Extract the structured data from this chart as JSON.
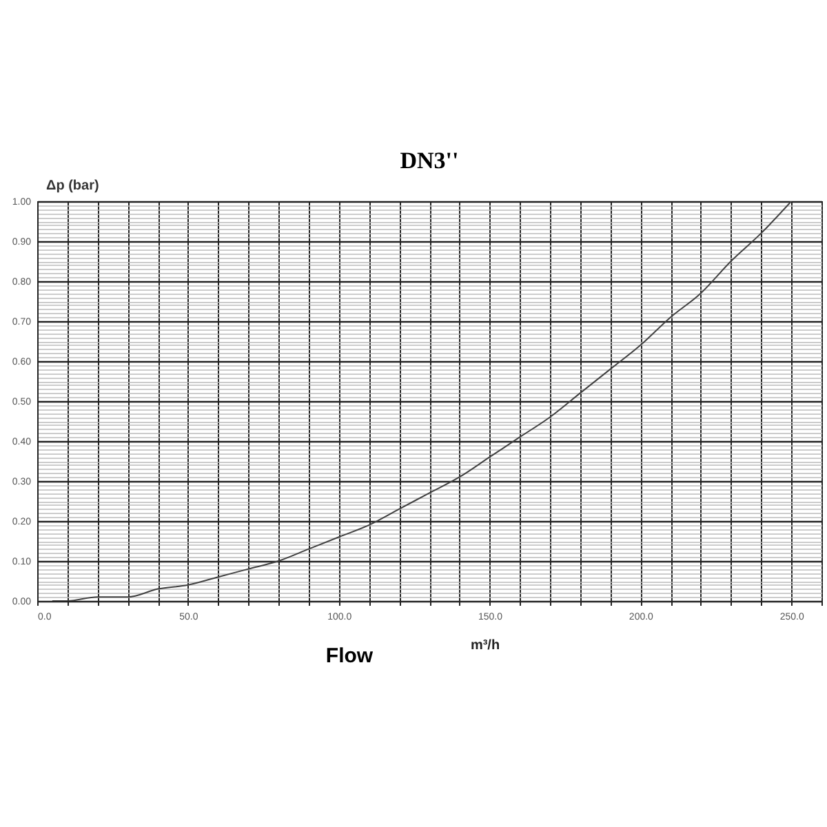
{
  "chart_data": {
    "type": "line",
    "title": "DN3''",
    "xlabel": "Flow",
    "ylabel": "Δp (bar)",
    "annotations": [
      "m³/h"
    ],
    "x": [
      5,
      10,
      20,
      30,
      40,
      50,
      60,
      70,
      80,
      90,
      100,
      110,
      120,
      130,
      140,
      150,
      160,
      170,
      180,
      190,
      200,
      210,
      220,
      230,
      240,
      250
    ],
    "series": [
      {
        "color": "#404040",
        "values": [
          0,
          0.0,
          0.01,
          0.01,
          0.03,
          0.04,
          0.06,
          0.08,
          0.1,
          0.13,
          0.16,
          0.19,
          0.23,
          0.27,
          0.31,
          0.36,
          0.41,
          0.46,
          0.52,
          0.58,
          0.64,
          0.71,
          0.77,
          0.85,
          0.92,
          1.0
        ]
      }
    ],
    "xlim": [
      0,
      260
    ],
    "xticks": [
      {
        "value": 0,
        "label": "0.0"
      },
      {
        "value": 10,
        "label": null
      },
      {
        "value": 20,
        "label": null
      },
      {
        "value": 30,
        "label": null
      },
      {
        "value": 40,
        "label": null
      },
      {
        "value": 50,
        "label": "50.0"
      },
      {
        "value": 60,
        "label": null
      },
      {
        "value": 70,
        "label": null
      },
      {
        "value": 80,
        "label": null
      },
      {
        "value": 90,
        "label": null
      },
      {
        "value": 100,
        "label": "100.0"
      },
      {
        "value": 110,
        "label": null
      },
      {
        "value": 120,
        "label": null
      },
      {
        "value": 130,
        "label": null
      },
      {
        "value": 140,
        "label": null
      },
      {
        "value": 150,
        "label": "150.0"
      },
      {
        "value": 160,
        "label": null
      },
      {
        "value": 170,
        "label": null
      },
      {
        "value": 180,
        "label": null
      },
      {
        "value": 190,
        "label": null
      },
      {
        "value": 200,
        "label": "200.0"
      },
      {
        "value": 210,
        "label": null
      },
      {
        "value": 220,
        "label": null
      },
      {
        "value": 230,
        "label": null
      },
      {
        "value": 240,
        "label": null
      },
      {
        "value": 250,
        "label": "250.0"
      },
      {
        "value": 260,
        "label": null
      }
    ],
    "ylim": [
      0,
      1
    ],
    "yticks": [
      {
        "value": 0,
        "label": "0.00"
      },
      {
        "value": 0.01,
        "label": null
      },
      {
        "value": 0.02,
        "label": null
      },
      {
        "value": 0.03,
        "label": null
      },
      {
        "value": 0.04,
        "label": null
      },
      {
        "value": 0.05,
        "label": null
      },
      {
        "value": 0.06,
        "label": null
      },
      {
        "value": 0.07,
        "label": null
      },
      {
        "value": 0.08,
        "label": null
      },
      {
        "value": 0.09,
        "label": null
      },
      {
        "value": 0.1,
        "label": "0.10"
      },
      {
        "value": 0.11,
        "label": null
      },
      {
        "value": 0.12,
        "label": null
      },
      {
        "value": 0.13,
        "label": null
      },
      {
        "value": 0.14,
        "label": null
      },
      {
        "value": 0.15,
        "label": null
      },
      {
        "value": 0.16,
        "label": null
      },
      {
        "value": 0.17,
        "label": null
      },
      {
        "value": 0.18,
        "label": null
      },
      {
        "value": 0.19,
        "label": null
      },
      {
        "value": 0.2,
        "label": "0.20"
      },
      {
        "value": 0.21,
        "label": null
      },
      {
        "value": 0.22,
        "label": null
      },
      {
        "value": 0.23,
        "label": null
      },
      {
        "value": 0.24,
        "label": null
      },
      {
        "value": 0.25,
        "label": null
      },
      {
        "value": 0.26,
        "label": null
      },
      {
        "value": 0.27,
        "label": null
      },
      {
        "value": 0.28,
        "label": null
      },
      {
        "value": 0.29,
        "label": null
      },
      {
        "value": 0.3,
        "label": "0.30"
      },
      {
        "value": 0.31,
        "label": null
      },
      {
        "value": 0.32,
        "label": null
      },
      {
        "value": 0.33,
        "label": null
      },
      {
        "value": 0.34,
        "label": null
      },
      {
        "value": 0.35,
        "label": null
      },
      {
        "value": 0.36,
        "label": null
      },
      {
        "value": 0.37,
        "label": null
      },
      {
        "value": 0.38,
        "label": null
      },
      {
        "value": 0.39,
        "label": null
      },
      {
        "value": 0.4,
        "label": "0.40"
      },
      {
        "value": 0.41,
        "label": null
      },
      {
        "value": 0.42,
        "label": null
      },
      {
        "value": 0.43,
        "label": null
      },
      {
        "value": 0.44,
        "label": null
      },
      {
        "value": 0.45,
        "label": null
      },
      {
        "value": 0.46,
        "label": null
      },
      {
        "value": 0.47,
        "label": null
      },
      {
        "value": 0.48,
        "label": null
      },
      {
        "value": 0.49,
        "label": null
      },
      {
        "value": 0.5,
        "label": "0.50"
      },
      {
        "value": 0.51,
        "label": null
      },
      {
        "value": 0.52,
        "label": null
      },
      {
        "value": 0.53,
        "label": null
      },
      {
        "value": 0.54,
        "label": null
      },
      {
        "value": 0.55,
        "label": null
      },
      {
        "value": 0.56,
        "label": null
      },
      {
        "value": 0.57,
        "label": null
      },
      {
        "value": 0.58,
        "label": null
      },
      {
        "value": 0.59,
        "label": null
      },
      {
        "value": 0.6,
        "label": "0.60"
      },
      {
        "value": 0.61,
        "label": null
      },
      {
        "value": 0.62,
        "label": null
      },
      {
        "value": 0.63,
        "label": null
      },
      {
        "value": 0.64,
        "label": null
      },
      {
        "value": 0.65,
        "label": null
      },
      {
        "value": 0.66,
        "label": null
      },
      {
        "value": 0.67,
        "label": null
      },
      {
        "value": 0.68,
        "label": null
      },
      {
        "value": 0.69,
        "label": null
      },
      {
        "value": 0.7,
        "label": "0.70"
      },
      {
        "value": 0.71,
        "label": null
      },
      {
        "value": 0.72,
        "label": null
      },
      {
        "value": 0.73,
        "label": null
      },
      {
        "value": 0.74,
        "label": null
      },
      {
        "value": 0.75,
        "label": null
      },
      {
        "value": 0.76,
        "label": null
      },
      {
        "value": 0.77,
        "label": null
      },
      {
        "value": 0.78,
        "label": null
      },
      {
        "value": 0.79,
        "label": null
      },
      {
        "value": 0.8,
        "label": "0.80"
      },
      {
        "value": 0.81,
        "label": null
      },
      {
        "value": 0.82,
        "label": null
      },
      {
        "value": 0.83,
        "label": null
      },
      {
        "value": 0.84,
        "label": null
      },
      {
        "value": 0.85,
        "label": null
      },
      {
        "value": 0.86,
        "label": null
      },
      {
        "value": 0.87,
        "label": null
      },
      {
        "value": 0.88,
        "label": null
      },
      {
        "value": 0.89,
        "label": null
      },
      {
        "value": 0.9,
        "label": "0.90"
      },
      {
        "value": 0.91,
        "label": null
      },
      {
        "value": 0.92,
        "label": null
      },
      {
        "value": 0.93,
        "label": null
      },
      {
        "value": 0.94,
        "label": null
      },
      {
        "value": 0.95,
        "label": null
      },
      {
        "value": 0.96,
        "label": null
      },
      {
        "value": 0.97,
        "label": null
      },
      {
        "value": 0.98,
        "label": null
      },
      {
        "value": 0.99,
        "label": null
      },
      {
        "value": 1,
        "label": "1.00"
      }
    ],
    "grid": true,
    "marker": "none",
    "line_style": "solid"
  }
}
